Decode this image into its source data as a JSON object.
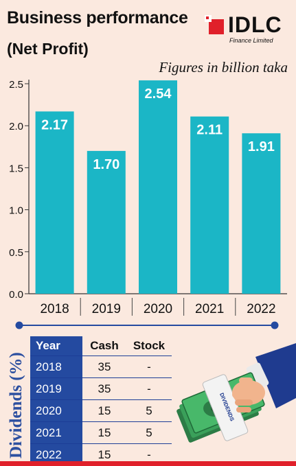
{
  "header": {
    "title": "Business performance",
    "subtitle": "(Net Profit)",
    "note": "Figures in billion taka"
  },
  "logo": {
    "name": "IDLC",
    "sub": "Finance Limited"
  },
  "chart_data": {
    "type": "bar",
    "categories": [
      "2018",
      "2019",
      "2020",
      "2021",
      "2022"
    ],
    "values": [
      2.17,
      1.7,
      2.54,
      2.11,
      1.91
    ],
    "value_labels": [
      "2.17",
      "1.70",
      "2.54",
      "2.11",
      "1.91"
    ],
    "ylim": [
      0,
      2.5
    ],
    "yticks": [
      "0.0",
      "0.5",
      "1.0",
      "1.5",
      "2.0",
      "2.5"
    ],
    "ytick_values": [
      0,
      0.5,
      1.0,
      1.5,
      2.0,
      2.5
    ],
    "bar_color": "#1bb6c6",
    "grid": false
  },
  "dividends": {
    "label": "Dividends (%)",
    "columns": [
      "Year",
      "Cash",
      "Stock"
    ],
    "rows": [
      {
        "year": "2018",
        "cash": "35",
        "stock": "-"
      },
      {
        "year": "2019",
        "cash": "35",
        "stock": "-"
      },
      {
        "year": "2020",
        "cash": "15",
        "stock": "5"
      },
      {
        "year": "2021",
        "cash": "15",
        "stock": "5"
      },
      {
        "year": "2022",
        "cash": "15",
        "stock": "-"
      }
    ],
    "banknote_text": "DIVIDENDS"
  },
  "colors": {
    "background": "#fbe9df",
    "bar": "#1bb6c6",
    "navy": "#244aa0",
    "accent_red": "#e0202a"
  }
}
